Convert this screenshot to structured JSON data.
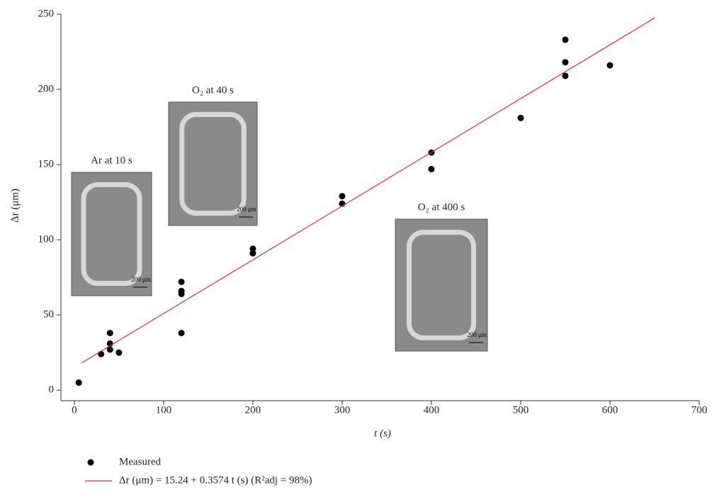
{
  "chart_data": {
    "type": "scatter",
    "xlabel": "t (s)",
    "ylabel": "Δr (μm)",
    "xlim": [
      -15,
      700
    ],
    "ylim": [
      -7,
      250
    ],
    "xticks": [
      0,
      100,
      200,
      300,
      400,
      500,
      600,
      700
    ],
    "yticks": [
      0,
      50,
      100,
      150,
      200,
      250
    ],
    "series": [
      {
        "name": "Measured",
        "color": "#000000",
        "kind": "points",
        "x": [
          5,
          30,
          40,
          40,
          40,
          50,
          120,
          120,
          120,
          120,
          200,
          200,
          300,
          300,
          400,
          400,
          500,
          550,
          550,
          550,
          600
        ],
        "values": [
          5,
          24,
          27,
          31,
          38,
          25,
          38,
          64,
          66,
          72,
          91,
          94,
          124,
          129,
          147,
          158,
          181,
          209,
          218,
          233,
          216
        ]
      },
      {
        "name": "Δr (μm) = 15.24 + 0.3574 t (s) (R²adj = 98%)",
        "color": "#e03030",
        "kind": "line",
        "x": [
          8,
          650
        ],
        "values": [
          18.1,
          247.5
        ]
      }
    ],
    "annotations": [
      {
        "text": "Ar at 10 s",
        "scale": "200 μm"
      },
      {
        "text": "O₂ at 40 s",
        "scale": "200 μm"
      },
      {
        "text": "O₂ at 400 s",
        "scale": "200 μm"
      }
    ]
  }
}
